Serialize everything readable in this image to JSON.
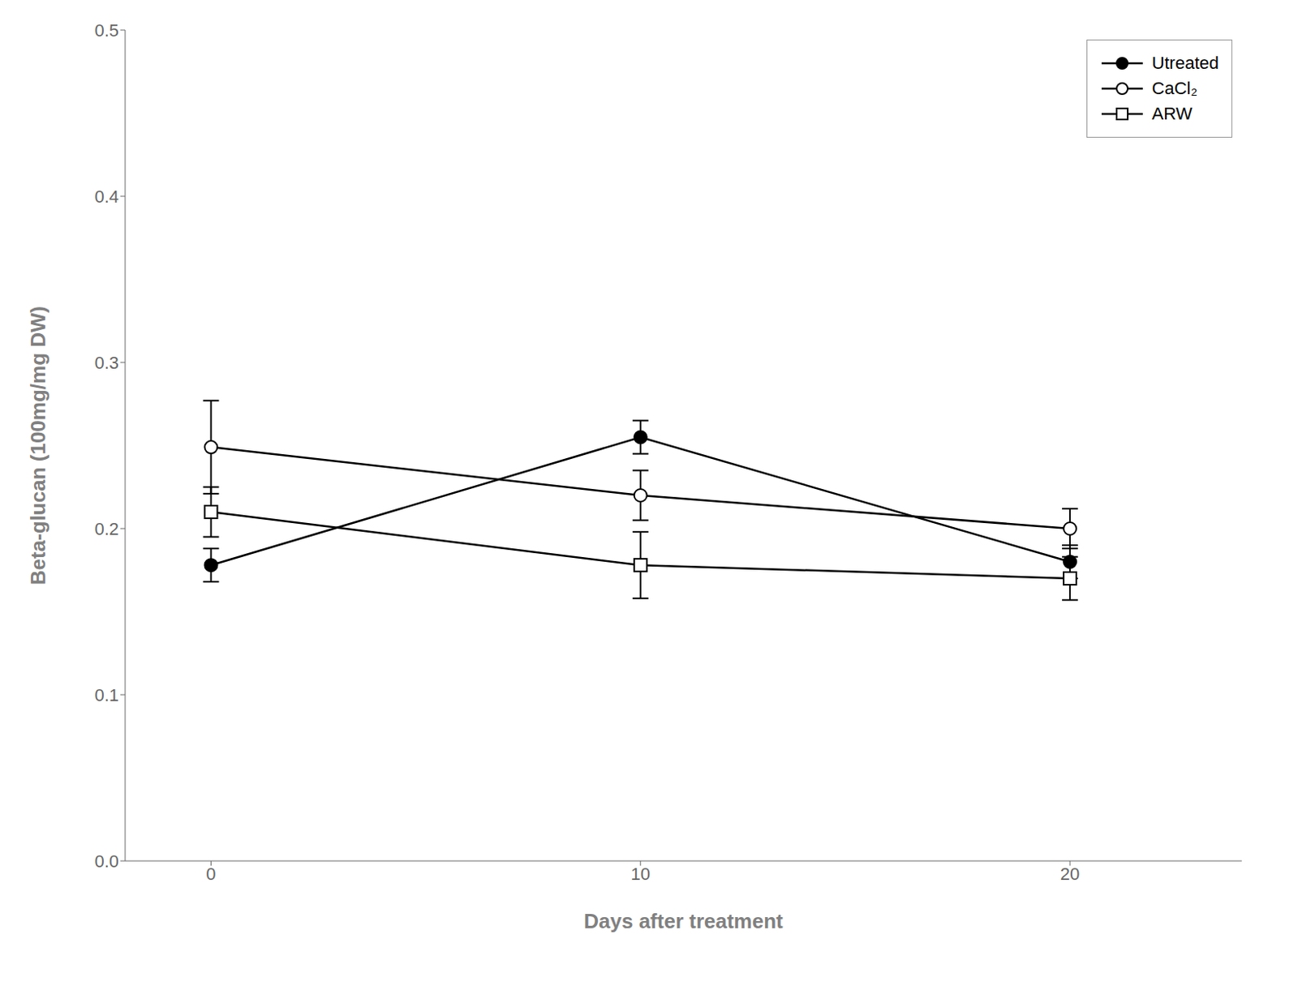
{
  "chart_data": {
    "type": "line",
    "x": [
      0,
      10,
      20
    ],
    "xlabel": "Days after treatment",
    "ylabel": "Beta-glucan (100mg/mg DW)",
    "xlim": [
      -2,
      24
    ],
    "xticks": [
      0,
      10,
      20
    ],
    "ylim": [
      0.0,
      0.5
    ],
    "yticks": [
      {
        "value": 0.0,
        "label": "0.0"
      },
      0.1,
      0.2,
      0.3,
      0.4,
      0.5
    ],
    "grid": false,
    "legend": "upper right",
    "series": [
      {
        "name": "Utreated",
        "color": "#000000",
        "marker": "circle",
        "line_style": "solid",
        "values": [
          0.178,
          0.255,
          0.18
        ],
        "yerr": [
          0.01,
          0.01,
          0.01
        ]
      },
      {
        "name": "CaCl₂",
        "color": "#000000",
        "marker": "open_circle",
        "line_style": "solid",
        "values": [
          0.249,
          0.22,
          0.2
        ],
        "yerr": [
          0.028,
          0.015,
          0.012
        ]
      },
      {
        "name": "ARW",
        "color": "#000000",
        "marker": "open_square",
        "line_style": "solid",
        "values": [
          0.21,
          0.178,
          0.17
        ],
        "yerr": [
          0.015,
          0.02,
          0.013
        ]
      }
    ]
  }
}
